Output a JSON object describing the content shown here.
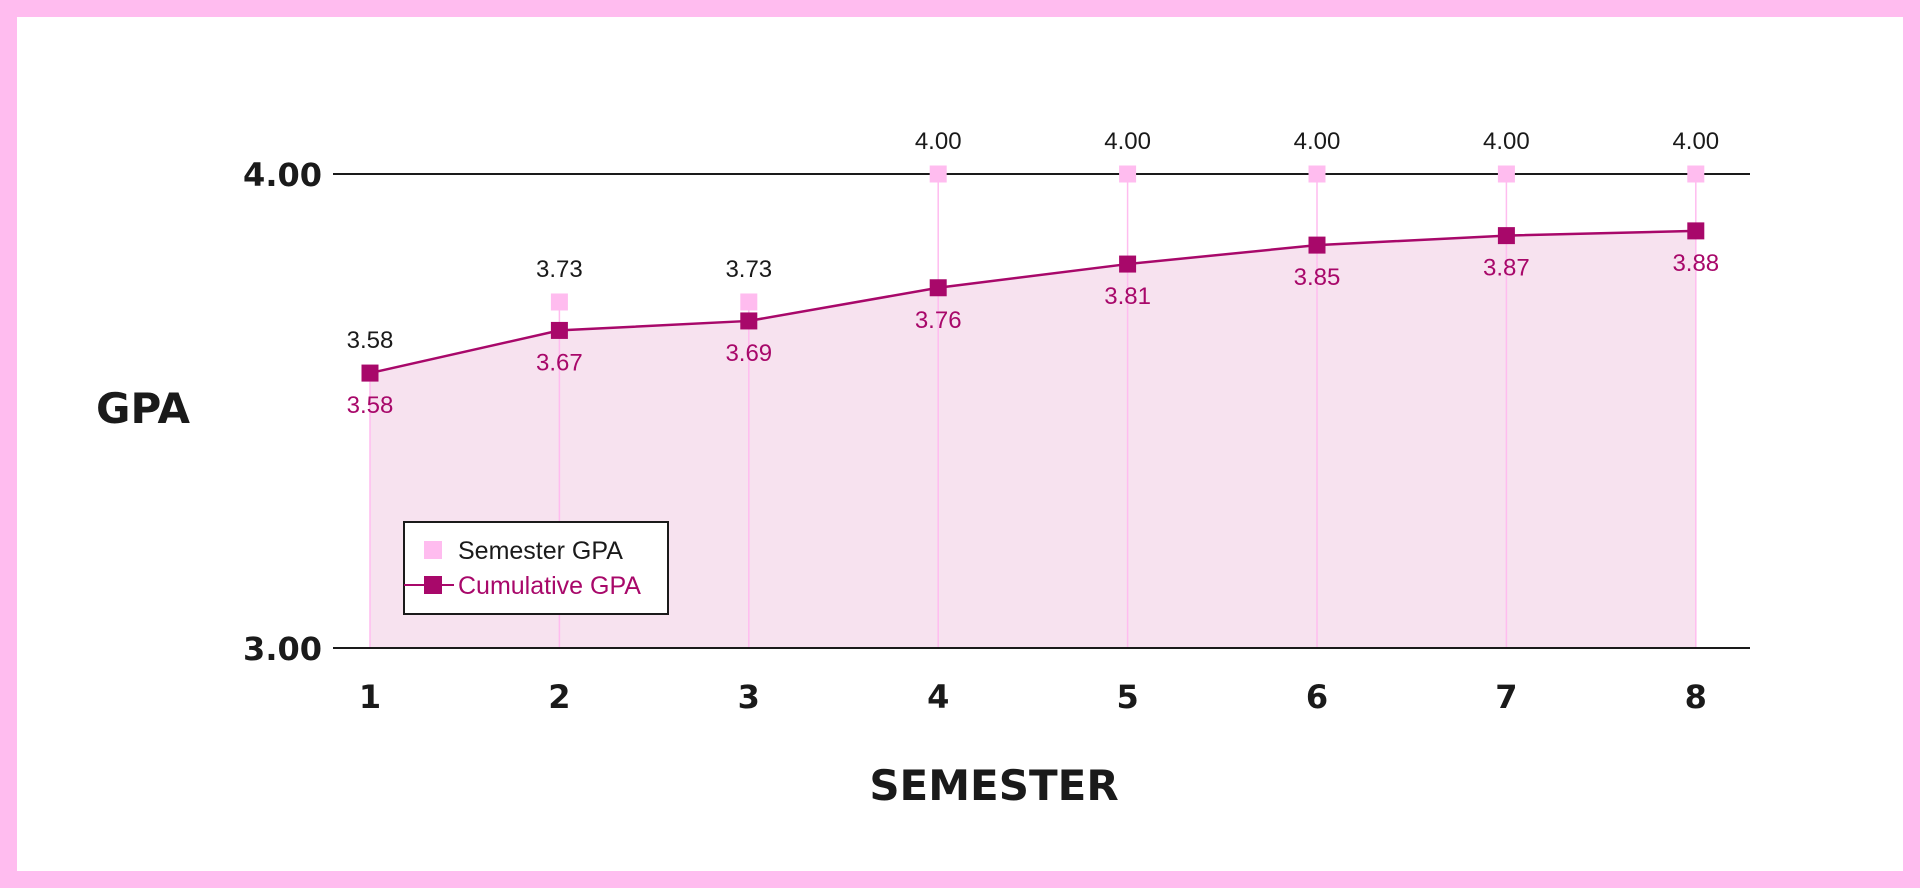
{
  "chart_data": {
    "type": "line",
    "xlabel": "SEMESTER",
    "ylabel": "GPA",
    "ylim": [
      3.0,
      4.0
    ],
    "y_ticks": [
      "3.00",
      "4.00"
    ],
    "categories": [
      "1",
      "2",
      "3",
      "4",
      "5",
      "6",
      "7",
      "8"
    ],
    "series": [
      {
        "name": "Semester GPA",
        "values": [
          3.58,
          3.73,
          3.73,
          4.0,
          4.0,
          4.0,
          4.0,
          4.0
        ],
        "labels": [
          "3.58",
          "3.73",
          "3.73",
          "4.00",
          "4.00",
          "4.00",
          "4.00",
          "4.00"
        ],
        "color": "#ffbcef"
      },
      {
        "name": "Cumulative GPA",
        "values": [
          3.58,
          3.67,
          3.69,
          3.76,
          3.81,
          3.85,
          3.87,
          3.88
        ],
        "labels": [
          "3.58",
          "3.67",
          "3.69",
          "3.76",
          "3.81",
          "3.85",
          "3.87",
          "3.88"
        ],
        "color": "#a8086a"
      }
    ],
    "area_fill": "#f7e2ef",
    "legend": "bottom-left",
    "grid": false
  }
}
